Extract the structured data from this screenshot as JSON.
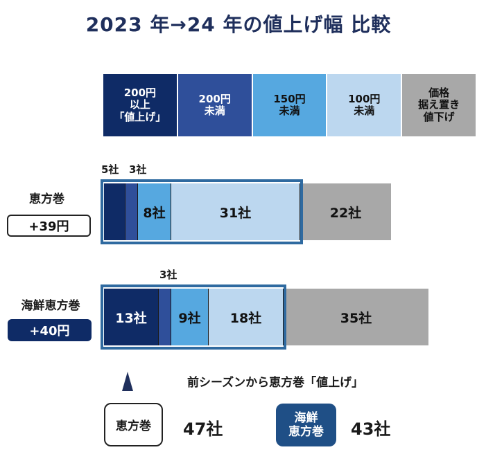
{
  "title": "2023 年→24 年の値上げ幅  比較",
  "legend": [
    {
      "lines": [
        "200円",
        "以上",
        "「値上げ」"
      ],
      "color": "#0f2b66"
    },
    {
      "lines": [
        "200円",
        "未満"
      ],
      "color": "#2f4f9a"
    },
    {
      "lines": [
        "150円",
        "未満"
      ],
      "color": "#56a8e0"
    },
    {
      "lines": [
        "100円",
        "未満"
      ],
      "color": "#bcd7ef"
    },
    {
      "lines": [
        "価格",
        "据え置き",
        "値下げ"
      ],
      "color": "#a8a8a8"
    }
  ],
  "chart_data": {
    "type": "bar",
    "orientation": "horizontal-stacked",
    "title": "2023 年→24 年の値上げ幅  比較",
    "unit": "社",
    "categories": [
      "恵方巻",
      "海鮮恵方巻"
    ],
    "series": [
      {
        "name": "200円以上「値上げ」",
        "values": [
          5,
          13
        ]
      },
      {
        "name": "200円未満",
        "values": [
          3,
          3
        ]
      },
      {
        "name": "150円未満",
        "values": [
          8,
          9
        ]
      },
      {
        "name": "100円未満",
        "values": [
          31,
          18
        ]
      },
      {
        "name": "価格据え置き値下げ",
        "values": [
          22,
          35
        ]
      }
    ]
  },
  "rows": [
    {
      "label": "恵方巻",
      "avg_change": "+39円",
      "segments": [
        "",
        "",
        "8社",
        "31社",
        "22社"
      ],
      "outside_labels": [
        "5社",
        "3社"
      ]
    },
    {
      "label": "海鮮恵方巻",
      "avg_change": "+40円",
      "segments": [
        "13社",
        "",
        "9社",
        "18社",
        "35社"
      ],
      "outside_labels": [
        "3社"
      ]
    }
  ],
  "summary": {
    "note": "前シーズンから恵方巻「値上げ」",
    "ehomaki_label": "恵方巻",
    "ehomaki_count": "47社",
    "kaisen_label_lines": [
      "海鮮",
      "恵方巻"
    ],
    "kaisen_count": "43社"
  }
}
